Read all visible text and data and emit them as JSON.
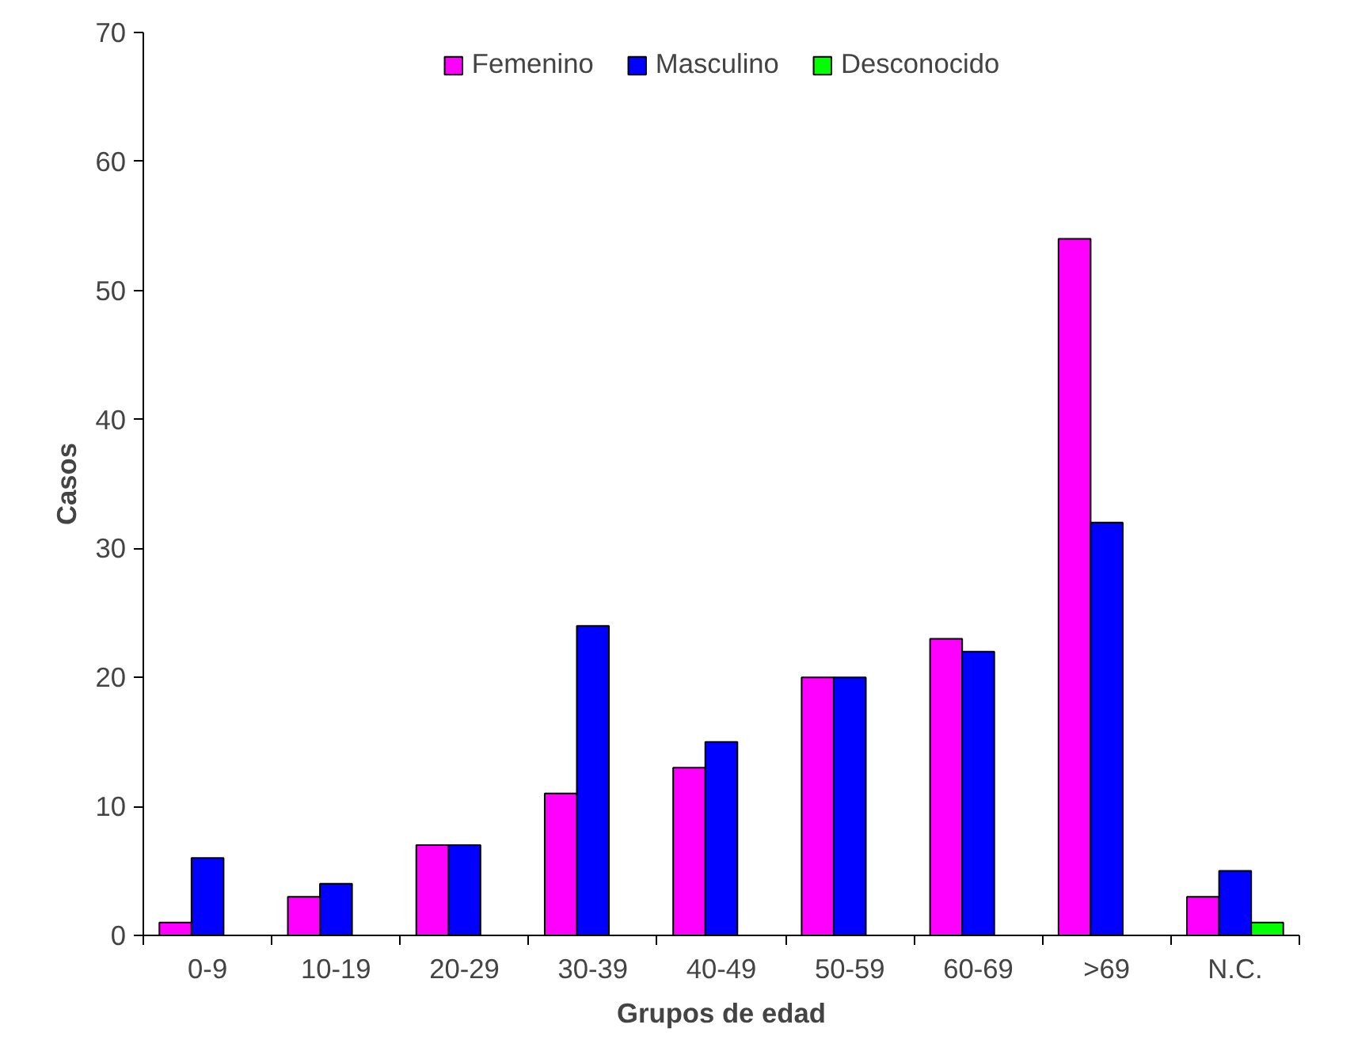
{
  "chart_data": {
    "type": "bar",
    "xlabel": "Grupos de edad",
    "ylabel": "Casos",
    "categories": [
      "0-9",
      "10-19",
      "20-29",
      "30-39",
      "40-49",
      "50-59",
      "60-69",
      ">69",
      "N.C."
    ],
    "series": [
      {
        "name": "Femenino",
        "color": "#ff00ff",
        "values": [
          1,
          3,
          7,
          11,
          13,
          20,
          23,
          54,
          3
        ]
      },
      {
        "name": "Masculino",
        "color": "#0000ff",
        "values": [
          6,
          4,
          7,
          24,
          15,
          20,
          22,
          32,
          5
        ]
      },
      {
        "name": "Desconocido",
        "color": "#00ff00",
        "values": [
          null,
          null,
          null,
          null,
          null,
          null,
          null,
          null,
          1
        ]
      }
    ],
    "ylim": [
      0,
      70
    ],
    "yticks": [
      0,
      10,
      20,
      30,
      40,
      50,
      60,
      70
    ],
    "grid": false,
    "legend": "top"
  }
}
